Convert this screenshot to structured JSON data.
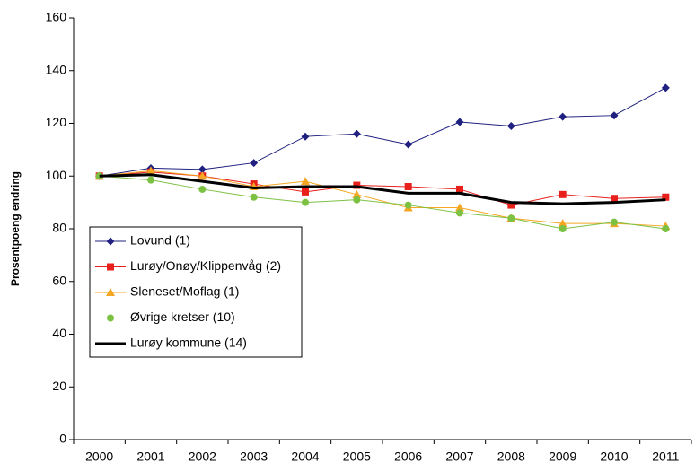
{
  "chart_data": {
    "type": "line",
    "ylabel": "Prosentpoeng endring",
    "categories": [
      "2000",
      "2001",
      "2002",
      "2003",
      "2004",
      "2005",
      "2006",
      "2007",
      "2008",
      "2009",
      "2010",
      "2011"
    ],
    "ylim": [
      0,
      160
    ],
    "yticks": [
      0,
      20,
      40,
      60,
      80,
      100,
      120,
      140,
      160
    ],
    "legend": "lower-left",
    "series": [
      {
        "name": "Lovund (1)",
        "color": "#1f2080",
        "marker": "diamond",
        "width": 1,
        "values": [
          100,
          103,
          102.5,
          105,
          115,
          116,
          112,
          120.5,
          119,
          122.5,
          123,
          133.5
        ]
      },
      {
        "name": "Lurøy/Onøy/Klippenvåg (2)",
        "color": "#e8201c",
        "marker": "square",
        "width": 1,
        "values": [
          100,
          101.5,
          100,
          97,
          94,
          96.5,
          96,
          95,
          89,
          93,
          91.5,
          92
        ]
      },
      {
        "name": "Sleneset/Moflag (1)",
        "color": "#f5a623",
        "marker": "triangle",
        "width": 1,
        "values": [
          100,
          102,
          100,
          96,
          98,
          93,
          88,
          88,
          84,
          82,
          82,
          81
        ]
      },
      {
        "name": "Øvrige kretser (10)",
        "color": "#7cc142",
        "marker": "circle",
        "width": 1,
        "values": [
          100,
          98.5,
          95,
          92,
          90,
          91,
          89,
          86,
          84,
          80,
          82.5,
          80
        ]
      },
      {
        "name": "Lurøy kommune (14)",
        "color": "#000000",
        "marker": "none",
        "width": 3,
        "values": [
          100,
          100.5,
          98,
          95.5,
          96,
          96,
          93.5,
          93.5,
          90,
          89.5,
          90,
          91
        ]
      }
    ]
  }
}
